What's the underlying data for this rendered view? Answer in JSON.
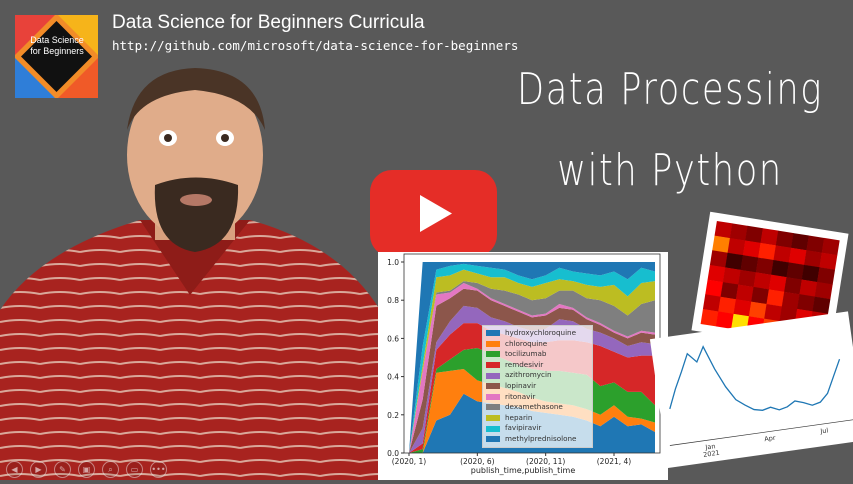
{
  "header": {
    "logo_text": "Data Science for Beginners",
    "title": "Data Science for Beginners Curricula",
    "url": "http://github.com/microsoft/data-science-for-beginners"
  },
  "headline": {
    "line1": "Data Processing",
    "line2": "with Python"
  },
  "play_button": {
    "icon": "youtube-play-icon",
    "color": "#e52d27"
  },
  "controls": [
    {
      "name": "previous",
      "icon": "◀"
    },
    {
      "name": "next",
      "icon": "▶"
    },
    {
      "name": "pen",
      "icon": "✎"
    },
    {
      "name": "slides",
      "icon": "▣"
    },
    {
      "name": "zoom",
      "icon": "⌕"
    },
    {
      "name": "subtitles",
      "icon": "▭"
    },
    {
      "name": "more",
      "icon": "•••"
    }
  ],
  "chart_data": [
    {
      "type": "area",
      "stacked": true,
      "xlabel": "publish_time,publish_time",
      "ylabel": "",
      "ylim": [
        0,
        1.0
      ],
      "yticks": [
        "0.0",
        "0.2",
        "0.4",
        "0.6",
        "0.8",
        "1.0"
      ],
      "xticks": [
        "(2020, 1)",
        "(2020, 6)",
        "(2020, 11)",
        "(2021, 4)"
      ],
      "legend_position": "center",
      "x": [
        "(2020, 1)",
        "(2020, 2)",
        "(2020, 3)",
        "(2020, 4)",
        "(2020, 5)",
        "(2020, 6)",
        "(2020, 7)",
        "(2020, 8)",
        "(2020, 9)",
        "(2020, 10)",
        "(2020, 11)",
        "(2020, 12)",
        "(2021, 1)",
        "(2021, 2)",
        "(2021, 3)",
        "(2021, 4)",
        "(2021, 5)",
        "(2021, 6)",
        "(2021, 7)"
      ],
      "series": [
        {
          "name": "hydroxychloroquine",
          "color": "#1f77b4",
          "values": [
            0,
            0,
            0.17,
            0.2,
            0.31,
            0.27,
            0.26,
            0.25,
            0.24,
            0.22,
            0.21,
            0.2,
            0.19,
            0.17,
            0.14,
            0.19,
            0.14,
            0.15,
            0.11
          ]
        },
        {
          "name": "chloroquine",
          "color": "#ff7f0e",
          "values": [
            0,
            0,
            0.25,
            0.23,
            0.13,
            0.11,
            0.1,
            0.09,
            0.08,
            0.07,
            0.06,
            0.06,
            0.06,
            0.06,
            0.06,
            0.06,
            0.05,
            0.03,
            0.05
          ]
        },
        {
          "name": "tocilizumab",
          "color": "#2ca02c",
          "values": [
            0,
            0.02,
            0.02,
            0.06,
            0.1,
            0.17,
            0.16,
            0.15,
            0.14,
            0.15,
            0.16,
            0.17,
            0.17,
            0.18,
            0.15,
            0.12,
            0.13,
            0.14,
            0.09
          ]
        },
        {
          "name": "remdesivir",
          "color": "#d62728",
          "values": [
            0,
            0.03,
            0.1,
            0.13,
            0.14,
            0.13,
            0.12,
            0.13,
            0.14,
            0.14,
            0.15,
            0.16,
            0.17,
            0.17,
            0.21,
            0.16,
            0.18,
            0.19,
            0.26
          ]
        },
        {
          "name": "azithromycin",
          "color": "#9467bd",
          "values": [
            0,
            0.08,
            0.04,
            0.07,
            0.09,
            0.08,
            0.07,
            0.07,
            0.06,
            0.06,
            0.07,
            0.11,
            0.1,
            0.07,
            0.07,
            0.07,
            0.06,
            0.07,
            0.06
          ]
        },
        {
          "name": "lopinavir",
          "color": "#8c564b",
          "values": [
            0,
            0.15,
            0.19,
            0.12,
            0.09,
            0.09,
            0.09,
            0.08,
            0.08,
            0.07,
            0.07,
            0.06,
            0.06,
            0.05,
            0.04,
            0.03,
            0.04,
            0.05,
            0.05
          ]
        },
        {
          "name": "ritonavir",
          "color": "#e377c2",
          "values": [
            0,
            0.15,
            0.06,
            0.03,
            0.03,
            0.01,
            0.01,
            0.01,
            0.01,
            0.01,
            0.01,
            0.02,
            0.01,
            0.01,
            0.01,
            0.01,
            0.01,
            0.01,
            0.01
          ]
        },
        {
          "name": "dexamethasone",
          "color": "#7f7f7f",
          "values": [
            0,
            0,
            0.01,
            0.01,
            0.01,
            0.03,
            0.05,
            0.07,
            0.08,
            0.08,
            0.08,
            0.07,
            0.09,
            0.1,
            0.12,
            0.13,
            0.11,
            0.14,
            0.17
          ]
        },
        {
          "name": "heparin",
          "color": "#bcbd22",
          "values": [
            0,
            0.03,
            0.08,
            0.08,
            0.06,
            0.05,
            0.06,
            0.07,
            0.06,
            0.07,
            0.08,
            0.06,
            0.05,
            0.07,
            0.07,
            0.11,
            0.1,
            0.11,
            0.1
          ]
        },
        {
          "name": "favipiravir",
          "color": "#17becf",
          "values": [
            0,
            0.1,
            0.04,
            0.05,
            0.03,
            0.04,
            0.05,
            0.04,
            0.04,
            0.04,
            0.04,
            0.06,
            0.05,
            0.06,
            0.06,
            0.07,
            0.09,
            0.08,
            0.05
          ]
        },
        {
          "name": "methylprednisolone",
          "color": "#1f77b4",
          "values": [
            0,
            0.44,
            0.04,
            0.02,
            0.01,
            0.02,
            0.03,
            0.04,
            0.07,
            0.09,
            0.07,
            0.03,
            0.05,
            0.06,
            0.07,
            0.05,
            0.09,
            0.03,
            0.05
          ]
        }
      ]
    },
    {
      "type": "heatmap",
      "colormap": "hot",
      "values": [
        [
          0.3,
          0.25,
          0.2,
          0.3,
          0.2,
          0.15,
          0.2,
          0.25
        ],
        [
          0.6,
          0.3,
          0.35,
          0.45,
          0.3,
          0.35,
          0.25,
          0.3
        ],
        [
          0.25,
          0.1,
          0.15,
          0.2,
          0.1,
          0.15,
          0.1,
          0.2
        ],
        [
          0.35,
          0.3,
          0.25,
          0.3,
          0.35,
          0.2,
          0.3,
          0.25
        ],
        [
          0.4,
          0.2,
          0.3,
          0.2,
          0.45,
          0.25,
          0.2,
          0.15
        ],
        [
          0.3,
          0.45,
          0.35,
          0.5,
          0.3,
          0.25,
          0.35,
          0.3
        ],
        [
          0.45,
          0.4,
          0.75,
          0.4,
          0.5,
          0.3,
          0.4,
          0.35
        ]
      ]
    },
    {
      "type": "line",
      "color": "#1f77b4",
      "xticks": [
        "Jan\n2021",
        "Apr",
        "Jul"
      ],
      "values": [
        0.35,
        0.55,
        0.72,
        0.9,
        0.8,
        0.95,
        0.7,
        0.5,
        0.35,
        0.28,
        0.22,
        0.2,
        0.22,
        0.18,
        0.2,
        0.25,
        0.22,
        0.18,
        0.2,
        0.28,
        0.45,
        0.62
      ]
    }
  ]
}
